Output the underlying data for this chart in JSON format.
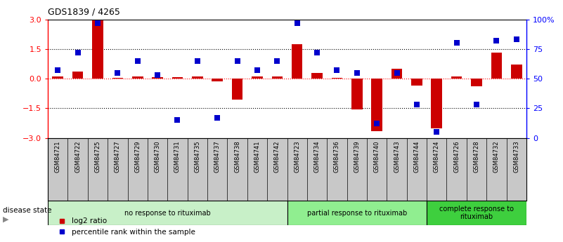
{
  "title": "GDS1839 / 4265",
  "samples": [
    "GSM84721",
    "GSM84722",
    "GSM84725",
    "GSM84727",
    "GSM84729",
    "GSM84730",
    "GSM84731",
    "GSM84735",
    "GSM84737",
    "GSM84738",
    "GSM84741",
    "GSM84742",
    "GSM84723",
    "GSM84734",
    "GSM84736",
    "GSM84739",
    "GSM84740",
    "GSM84743",
    "GSM84744",
    "GSM84724",
    "GSM84726",
    "GSM84728",
    "GSM84732",
    "GSM84733"
  ],
  "log2_ratio": [
    0.1,
    0.35,
    2.95,
    0.05,
    0.12,
    0.08,
    0.08,
    0.12,
    -0.12,
    -1.05,
    0.1,
    0.1,
    1.75,
    0.3,
    0.05,
    -1.55,
    -2.65,
    0.5,
    -0.35,
    -2.5,
    0.12,
    -0.4,
    1.3,
    0.72
  ],
  "percentile": [
    57,
    72,
    97,
    55,
    65,
    53,
    15,
    65,
    17,
    65,
    57,
    65,
    97,
    72,
    57,
    55,
    12,
    55,
    28,
    5,
    80,
    28,
    82,
    83
  ],
  "groups": [
    {
      "label": "no response to rituximab",
      "start": 0,
      "end": 12,
      "color": "#c8f0c8"
    },
    {
      "label": "partial response to rituximab",
      "start": 12,
      "end": 19,
      "color": "#90ee90"
    },
    {
      "label": "complete response to\nrituximab",
      "start": 19,
      "end": 24,
      "color": "#3ecf3e"
    }
  ],
  "bar_color": "#cc0000",
  "dot_color": "#0000cc",
  "ylim": [
    -3,
    3
  ],
  "y2lim": [
    0,
    100
  ],
  "yticks": [
    -3,
    -1.5,
    0,
    1.5,
    3
  ],
  "y2ticks": [
    0,
    25,
    50,
    75,
    100
  ],
  "hlines_dotted": [
    -1.5,
    1.5
  ],
  "hline_red": 0,
  "bar_width": 0.55,
  "dot_size": 40,
  "legend_items": [
    "log2 ratio",
    "percentile rank within the sample"
  ],
  "label_bg": "#c8c8c8"
}
